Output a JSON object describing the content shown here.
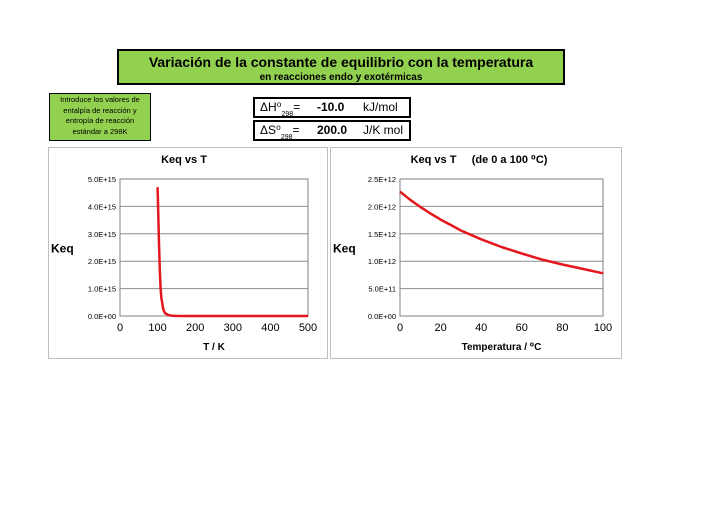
{
  "header": {
    "title": "Variación de la constante de equilibrio con la temperatura",
    "subtitle": "en reacciones endo y exotérmicas"
  },
  "intro_note": {
    "line1": "Introduce los valores de",
    "line2": "entalpía de reacción y",
    "line3": "entropía de reacción",
    "line4": "estándar a 298K"
  },
  "params": {
    "enthalpy": {
      "symbol": "ΔH⁰",
      "subscript": "298",
      "eq": "=",
      "value": "-10.0",
      "unit": "kJ/mol"
    },
    "entropy": {
      "symbol": "ΔS⁰",
      "subscript": "298",
      "eq": "=",
      "value": "200.0",
      "unit": "J/K mol"
    }
  },
  "colors": {
    "title_bg": "#92d050",
    "curve": "#e3171e",
    "grid": "#8c8c8c"
  },
  "chart_data": [
    {
      "type": "line",
      "title": "Keq vs T",
      "xlabel": "T / K",
      "ylabel": "Keq",
      "xlim": [
        0,
        500
      ],
      "ylim": [
        0,
        5000000000000000.0
      ],
      "xticks": [
        "0",
        "100",
        "200",
        "300",
        "400",
        "500"
      ],
      "yticks": [
        "0.0E+00",
        "1.0E+15",
        "2.0E+15",
        "3.0E+15",
        "4.0E+15",
        "5.0E+15"
      ],
      "grid": true,
      "series": [
        {
          "x": [
            100,
            104,
            106,
            108,
            110,
            115,
            120,
            130,
            140,
            150,
            175,
            200,
            250,
            300,
            400,
            500
          ],
          "y": [
            4700000000000000.0,
            2500000000000000.0,
            1600000000000000.0,
            1000000000000000.0,
            650000000000000.0,
            250000000000000.0,
            100000000000000.0,
            30000000000000.0,
            10000000000000.0,
            4000000000000.0,
            500000000000.0,
            100000000000.0,
            10000000000.0,
            2500000000.0,
            300000000.0,
            80000000.0
          ]
        }
      ]
    },
    {
      "type": "line",
      "title": "Keq vs T     (de 0 a 100 ⁰C)",
      "xlabel": "Temperatura / ⁰C",
      "ylabel": "Keq",
      "xlim": [
        0,
        100
      ],
      "ylim": [
        0,
        2500000000000.0
      ],
      "xticks": [
        "0",
        "20",
        "40",
        "60",
        "80",
        "100"
      ],
      "yticks": [
        "0.0E+00",
        "5.0E+11",
        "1.0E+12",
        "1.5E+12",
        "2.0E+12",
        "2.5E+12"
      ],
      "grid": true,
      "series": [
        {
          "x": [
            0,
            5,
            10,
            15,
            20,
            25,
            30,
            40,
            50,
            60,
            70,
            80,
            90,
            100
          ],
          "y": [
            2270000000000.0,
            2120000000000.0,
            1990000000000.0,
            1870000000000.0,
            1760000000000.0,
            1660000000000.0,
            1560000000000.0,
            1400000000000.0,
            1260000000000.0,
            1140000000000.0,
            1030000000000.0,
            940000000000.0,
            860000000000.0,
            780000000000.0
          ]
        }
      ]
    }
  ]
}
